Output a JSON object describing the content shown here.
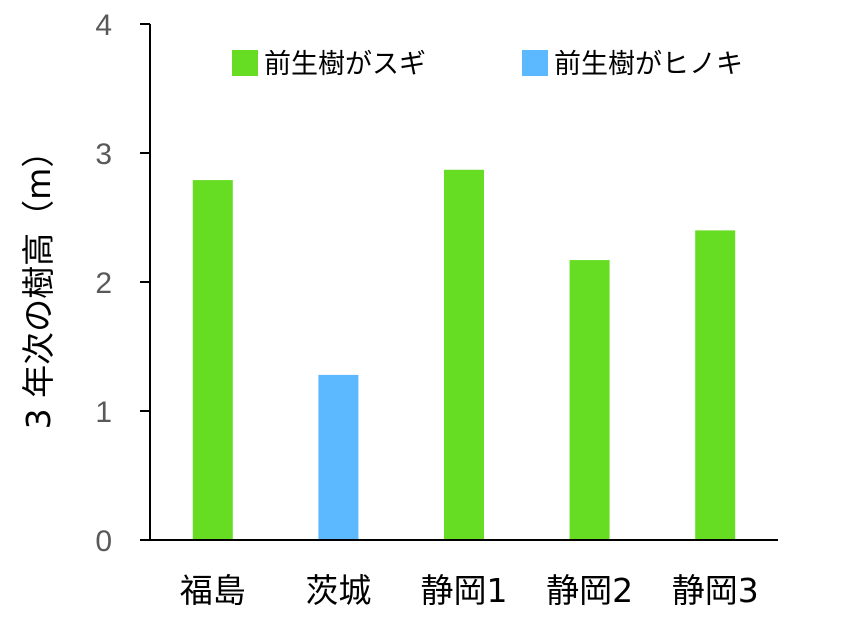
{
  "chart_data": {
    "type": "bar",
    "categories": [
      "福島",
      "茨城",
      "静岡1",
      "静岡2",
      "静岡3"
    ],
    "values": [
      2.79,
      1.28,
      2.87,
      2.17,
      2.4
    ],
    "series_of_category": [
      0,
      1,
      0,
      0,
      0
    ],
    "series": [
      {
        "name": "前生樹がスギ",
        "color": "#66dd22"
      },
      {
        "name": "前生樹がヒノキ",
        "color": "#5cb8ff"
      }
    ],
    "title": "",
    "xlabel": "",
    "ylabel": "3 年次の樹高（m）",
    "ylim": [
      0,
      4
    ],
    "yticks": [
      "0",
      "1",
      "2",
      "3",
      "4"
    ],
    "grid": false,
    "legend_position": "top"
  }
}
